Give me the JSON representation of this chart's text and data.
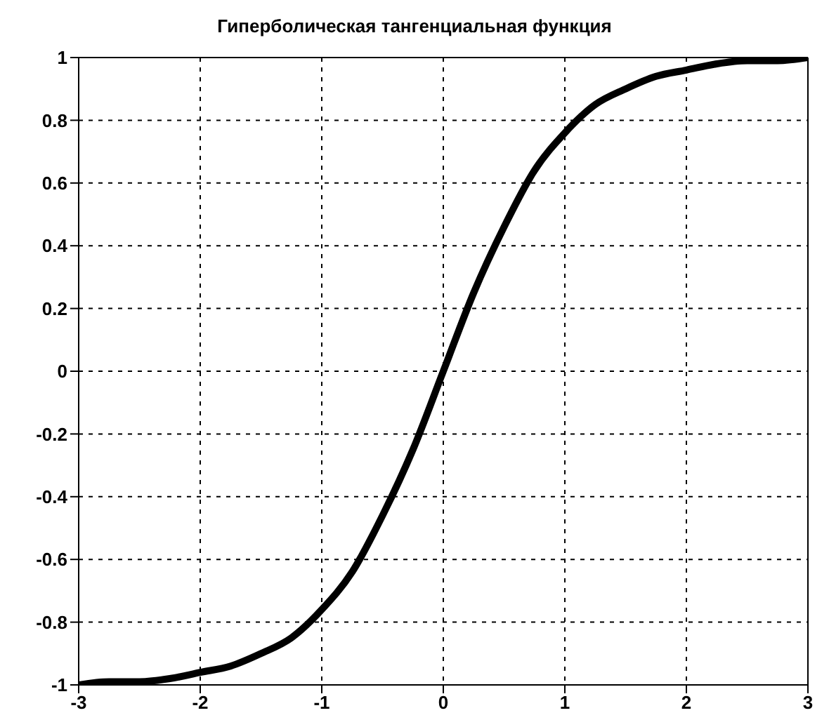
{
  "chart_data": {
    "type": "line",
    "title": "Гиперболическая тангенциальная функция",
    "x": [
      -3,
      -2.75,
      -2.5,
      -2.25,
      -2,
      -1.75,
      -1.5,
      -1.25,
      -1,
      -0.75,
      -0.5,
      -0.25,
      0,
      0.25,
      0.5,
      0.75,
      1,
      1.25,
      1.5,
      1.75,
      2,
      2.25,
      2.5,
      2.75,
      3
    ],
    "series": [
      {
        "color": "#000000",
        "values": [
          -1.0,
          -0.99,
          -0.99,
          -0.98,
          -0.96,
          -0.94,
          -0.9,
          -0.85,
          -0.76,
          -0.64,
          -0.46,
          -0.25,
          0,
          0.25,
          0.46,
          0.64,
          0.76,
          0.85,
          0.9,
          0.94,
          0.96,
          0.98,
          0.99,
          0.99,
          1.0
        ]
      }
    ],
    "xlim": [
      -3,
      3
    ],
    "xticks": [
      -3,
      -2,
      -1,
      0,
      1,
      2,
      3
    ],
    "ylim": [
      -1,
      1
    ],
    "yticks": [
      -1,
      -0.8,
      -0.6,
      -0.4,
      -0.2,
      0,
      0.2,
      0.4,
      0.6,
      0.8,
      1
    ],
    "grid": true,
    "legend": false,
    "marker": "none",
    "line_style": "solid"
  }
}
